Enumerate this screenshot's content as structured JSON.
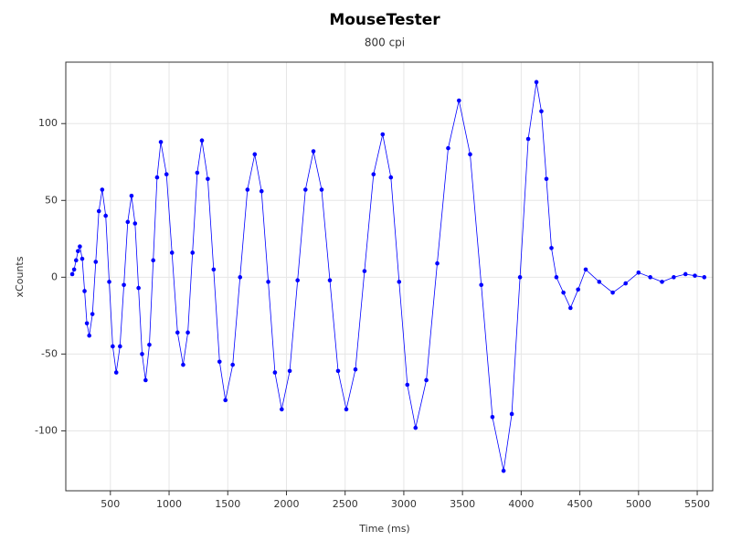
{
  "chart_data": {
    "type": "line",
    "title": "MouseTester",
    "subtitle": "800 cpi",
    "x_label": "Time (ms)",
    "y_label": "xCounts",
    "xlim": [
      120,
      5632
    ],
    "ylim": [
      -139,
      140
    ],
    "xticks": [
      500,
      1000,
      1500,
      2000,
      2500,
      3000,
      3500,
      4000,
      4500,
      5000,
      5500
    ],
    "yticks": [
      -100,
      -50,
      0,
      50,
      100
    ],
    "grid": true,
    "x": [
      175,
      191,
      208,
      224,
      240,
      260,
      280,
      300,
      320,
      347,
      375,
      402,
      430,
      460,
      490,
      520,
      550,
      582,
      615,
      648,
      680,
      710,
      740,
      770,
      800,
      832,
      865,
      898,
      930,
      978,
      1025,
      1072,
      1120,
      1160,
      1200,
      1240,
      1280,
      1330,
      1380,
      1430,
      1480,
      1542,
      1605,
      1668,
      1730,
      1788,
      1845,
      1902,
      1960,
      2028,
      2095,
      2162,
      2230,
      2300,
      2370,
      2440,
      2510,
      2588,
      2665,
      2742,
      2820,
      2890,
      2960,
      3030,
      3100,
      3192,
      3285,
      3378,
      3470,
      3565,
      3660,
      3755,
      3850,
      3920,
      3990,
      4060,
      4130,
      4172,
      4215,
      4258,
      4300,
      4360,
      4420,
      4485,
      4550,
      4665,
      4780,
      4890,
      5000,
      5100,
      5200,
      5300,
      5400,
      5480,
      5560
    ],
    "series": [
      {
        "name": "xCounts",
        "color": "#0000ff",
        "values": [
          2,
          5,
          11,
          17,
          20,
          12,
          -9,
          -30,
          -38,
          -24,
          10,
          43,
          57,
          40,
          -3,
          -45,
          -62,
          -45,
          -5,
          36,
          53,
          35,
          -7,
          -50,
          -67,
          -44,
          11,
          65,
          88,
          67,
          16,
          -36,
          -57,
          -36,
          16,
          68,
          89,
          64,
          5,
          -55,
          -80,
          -57,
          0,
          57,
          80,
          56,
          -3,
          -62,
          -86,
          -61,
          -2,
          57,
          82,
          57,
          -2,
          -61,
          -86,
          -60,
          4,
          67,
          93,
          65,
          -3,
          -70,
          -98,
          -67,
          9,
          84,
          115,
          80,
          -5,
          -91,
          -126,
          -89,
          0,
          90,
          127,
          108,
          64,
          19,
          0,
          -10,
          -20,
          -8,
          5,
          -3,
          -10,
          -4,
          3,
          0,
          -3,
          0,
          2,
          1,
          0
        ]
      }
    ]
  }
}
